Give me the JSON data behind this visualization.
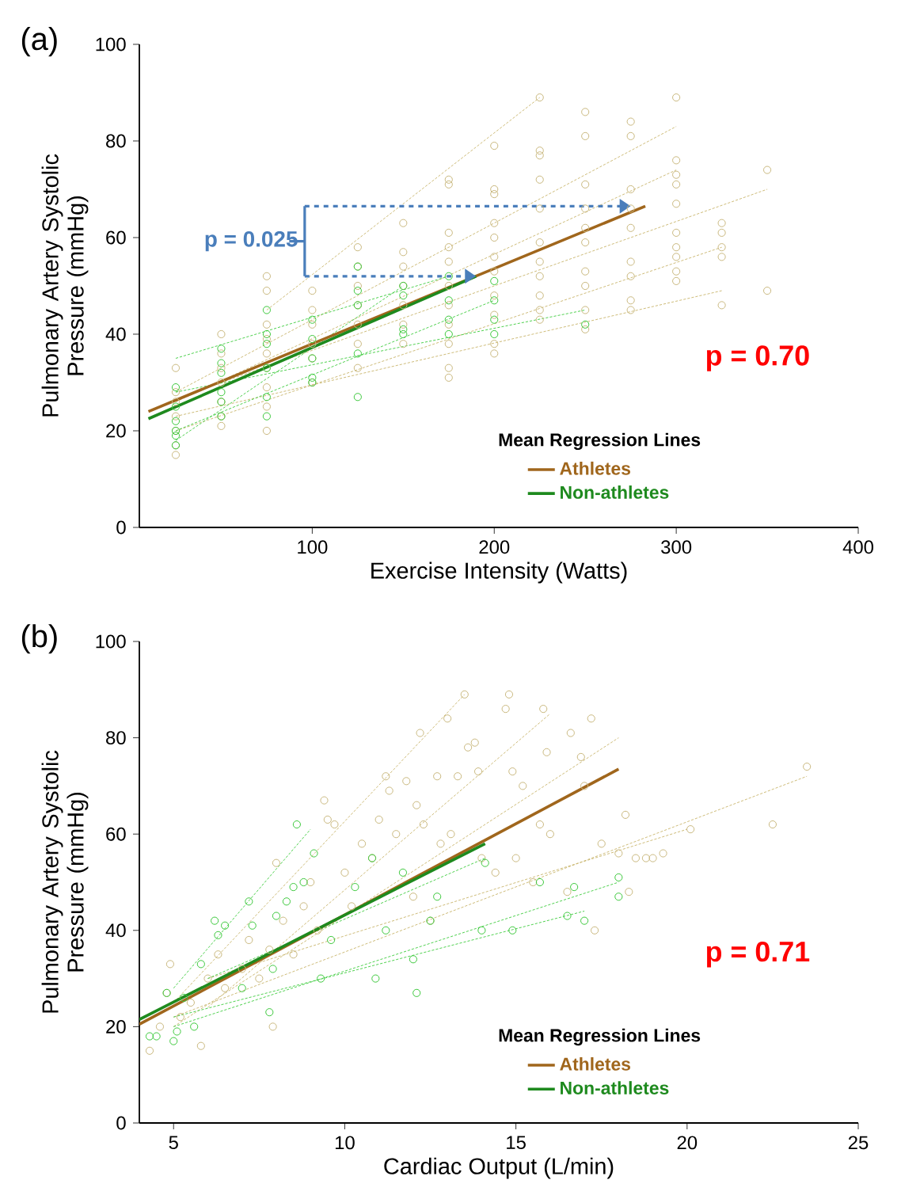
{
  "chart_data": [
    {
      "type": "scatter",
      "title": "(a)",
      "xlabel": "Exercise Intensity (Watts)",
      "ylabel": "Pulmonary Artery Systolic Pressure (mmHg)",
      "legend_title": "Mean Regression Lines",
      "legend": "bottom right",
      "xlim": [
        5,
        400
      ],
      "xticks": [
        100,
        200,
        300,
        400
      ],
      "ylim": [
        0,
        100
      ],
      "yticks": [
        0,
        20,
        40,
        60,
        80,
        100
      ],
      "annotations": [
        {
          "text": "p = 0.025",
          "x": 190,
          "y": 52
        },
        "p = 0.70"
      ],
      "series": [
        {
          "marker": "circle",
          "color": "#c9b87e",
          "x": [
            25,
            25,
            25,
            25,
            25,
            25,
            25,
            50,
            50,
            50,
            50,
            50,
            50,
            50,
            75,
            75,
            75,
            75,
            75,
            75,
            75,
            75,
            75,
            100,
            100,
            100,
            100,
            100,
            100,
            125,
            125,
            125,
            125,
            125,
            125,
            125,
            150,
            150,
            150,
            150,
            150,
            150,
            150,
            175,
            175,
            175,
            175,
            175,
            175,
            175,
            175,
            175,
            175,
            175,
            200,
            200,
            200,
            200,
            200,
            200,
            200,
            200,
            200,
            200,
            200,
            225,
            225,
            225,
            225,
            225,
            225,
            225,
            225,
            225,
            225,
            225,
            250,
            250,
            250,
            250,
            250,
            250,
            250,
            250,
            250,
            250,
            275,
            275,
            275,
            275,
            275,
            275,
            275,
            275,
            275,
            300,
            300,
            300,
            300,
            300,
            300,
            300,
            300,
            300,
            300,
            325,
            325,
            325,
            325,
            325,
            350,
            350
          ],
          "values": [
            15,
            17,
            20,
            23,
            26,
            28,
            33,
            21,
            23,
            26,
            30,
            33,
            36,
            40,
            20,
            25,
            29,
            33,
            36,
            39,
            42,
            49,
            52,
            30,
            35,
            38,
            42,
            45,
            49,
            33,
            38,
            42,
            46,
            50,
            54,
            58,
            38,
            42,
            46,
            50,
            54,
            57,
            63,
            31,
            33,
            38,
            42,
            46,
            50,
            55,
            58,
            61,
            71,
            72,
            36,
            38,
            44,
            48,
            53,
            56,
            60,
            63,
            69,
            70,
            79,
            43,
            45,
            48,
            52,
            55,
            59,
            66,
            72,
            77,
            78,
            89,
            41,
            45,
            50,
            53,
            59,
            62,
            66,
            71,
            81,
            86,
            45,
            47,
            52,
            55,
            62,
            66,
            70,
            81,
            84,
            51,
            53,
            56,
            58,
            61,
            67,
            71,
            73,
            76,
            89,
            46,
            56,
            58,
            61,
            63,
            49,
            74
          ]
        },
        {
          "marker": "circle",
          "color": "#3cc83c",
          "x": [
            25,
            25,
            25,
            25,
            25,
            25,
            50,
            50,
            50,
            50,
            50,
            50,
            75,
            75,
            75,
            75,
            75,
            75,
            100,
            100,
            100,
            100,
            100,
            125,
            125,
            125,
            125,
            125,
            150,
            150,
            150,
            150,
            175,
            175,
            175,
            175,
            200,
            200,
            200,
            200,
            250
          ],
          "values": [
            17,
            19,
            20,
            22,
            25,
            29,
            23,
            26,
            28,
            32,
            34,
            37,
            23,
            27,
            33,
            38,
            40,
            45,
            30,
            31,
            35,
            39,
            43,
            27,
            36,
            46,
            49,
            54,
            40,
            41,
            48,
            50,
            40,
            43,
            47,
            52,
            40,
            43,
            47,
            51,
            42
          ]
        },
        {
          "type": "line",
          "line_style": "dashed",
          "marker": "none",
          "color": "#c8b46a",
          "x": [
            25,
            300
          ],
          "values": [
            28,
            83
          ]
        },
        {
          "type": "line",
          "line_style": "dashed",
          "marker": "none",
          "color": "#c8b46a",
          "x": [
            25,
            325
          ],
          "values": [
            20,
            58
          ]
        },
        {
          "type": "line",
          "line_style": "dashed",
          "marker": "none",
          "color": "#c8b46a",
          "x": [
            50,
            350
          ],
          "values": [
            30,
            70
          ]
        },
        {
          "type": "line",
          "line_style": "dashed",
          "marker": "none",
          "color": "#c8b46a",
          "x": [
            25,
            325
          ],
          "values": [
            23,
            49
          ]
        },
        {
          "type": "line",
          "line_style": "dashed",
          "marker": "none",
          "color": "#c8b46a",
          "x": [
            75,
            225
          ],
          "values": [
            45,
            89
          ]
        },
        {
          "type": "line",
          "line_style": "dashed",
          "marker": "none",
          "color": "#c8b46a",
          "x": [
            25,
            300
          ],
          "values": [
            26,
            74
          ]
        },
        {
          "type": "line",
          "line_style": "dashed",
          "marker": "none",
          "color": "#3ccc3c",
          "x": [
            25,
            175
          ],
          "values": [
            35,
            52
          ]
        },
        {
          "type": "line",
          "line_style": "dashed",
          "marker": "none",
          "color": "#3ccc3c",
          "x": [
            25,
            200
          ],
          "values": [
            20,
            47
          ]
        },
        {
          "type": "line",
          "line_style": "dashed",
          "marker": "none",
          "color": "#3ccc3c",
          "x": [
            25,
            250
          ],
          "values": [
            28,
            45
          ]
        },
        {
          "type": "line",
          "line_style": "dashed",
          "marker": "none",
          "color": "#3ccc3c",
          "x": [
            25,
            150
          ],
          "values": [
            18,
            50
          ]
        },
        {
          "type": "line",
          "line_style": "solid",
          "marker": "none",
          "name": "Athletes",
          "color": "#a0661c",
          "x": [
            10,
            283
          ],
          "values": [
            24,
            66.5
          ]
        },
        {
          "type": "line",
          "line_style": "solid",
          "marker": "none",
          "name": "Non-athletes",
          "color": "#1e8a1e",
          "x": [
            10,
            190
          ],
          "values": [
            22.5,
            52
          ]
        }
      ]
    },
    {
      "type": "scatter",
      "title": "(b)",
      "xlabel": "Cardiac Output (L/min)",
      "ylabel": "Pulmonary Artery Systolic Pressure (mmHg)",
      "legend_title": "Mean Regression Lines",
      "legend": "bottom right",
      "xlim": [
        4,
        25
      ],
      "xticks": [
        5,
        10,
        15,
        20,
        25
      ],
      "ylim": [
        0,
        100
      ],
      "yticks": [
        0,
        20,
        40,
        60,
        80,
        100
      ],
      "annotations": [
        "p = 0.71"
      ],
      "series": [
        {
          "marker": "circle",
          "color": "#c9b87e",
          "x": [
            4.3,
            4.6,
            4.8,
            4.9,
            5.2,
            5.5,
            5.8,
            6,
            6.3,
            6.5,
            7,
            7.2,
            7.5,
            7.8,
            7.9,
            8,
            8.2,
            8.5,
            8.8,
            9,
            9.2,
            9.4,
            9.5,
            9.7,
            10,
            10.2,
            10.5,
            10.8,
            11,
            11.2,
            11.3,
            11.5,
            11.8,
            12,
            12.1,
            12.2,
            12.3,
            12.5,
            12.7,
            12.8,
            13,
            13.1,
            13.3,
            13.5,
            13.6,
            13.8,
            13.9,
            14,
            14.4,
            14.7,
            14.8,
            14.9,
            15,
            15.2,
            15.5,
            15.7,
            15.8,
            15.9,
            16,
            16.5,
            16.6,
            16.9,
            17,
            17.2,
            17.3,
            17.5,
            18,
            18.2,
            18.3,
            18.5,
            18.8,
            19,
            19.3,
            20.1,
            22.5,
            23.5
          ],
          "values": [
            15,
            20,
            27,
            33,
            22,
            25,
            16,
            30,
            35,
            28,
            32,
            38,
            30,
            36,
            20,
            54,
            42,
            35,
            45,
            50,
            40,
            67,
            63,
            62,
            52,
            45,
            58,
            55,
            63,
            72,
            69,
            60,
            71,
            47,
            66,
            81,
            62,
            42,
            72,
            58,
            84,
            60,
            72,
            89,
            78,
            79,
            73,
            55,
            52,
            86,
            89,
            73,
            55,
            70,
            50,
            62,
            86,
            77,
            60,
            48,
            81,
            76,
            70,
            84,
            40,
            58,
            56,
            64,
            48,
            55,
            55,
            55,
            56,
            61,
            62,
            74
          ]
        },
        {
          "marker": "circle",
          "color": "#3cc83c",
          "x": [
            4.3,
            4.5,
            4.8,
            5,
            5.1,
            5.3,
            5.6,
            5.8,
            6.2,
            6.3,
            6.5,
            7,
            7.2,
            7.3,
            7.8,
            7.9,
            8,
            8.3,
            8.5,
            8.6,
            8.8,
            9.1,
            9.3,
            9.6,
            10.3,
            10.8,
            10.9,
            11.2,
            11.7,
            12,
            12.1,
            12.5,
            12.7,
            14,
            14.1,
            14.9,
            15.7,
            16.5,
            16.7,
            17,
            18,
            18
          ],
          "values": [
            18,
            18,
            27,
            17,
            19,
            26,
            20,
            33,
            42,
            39,
            41,
            28,
            46,
            41,
            23,
            32,
            43,
            46,
            49,
            62,
            50,
            56,
            30,
            38,
            49,
            55,
            30,
            40,
            52,
            34,
            27,
            42,
            47,
            40,
            54,
            40,
            50,
            43,
            49,
            42,
            51,
            47
          ]
        },
        {
          "type": "line",
          "line_style": "dashed",
          "marker": "none",
          "color": "#c8b46a",
          "x": [
            5,
            13.5
          ],
          "values": [
            25,
            89
          ]
        },
        {
          "type": "line",
          "line_style": "dashed",
          "marker": "none",
          "color": "#c8b46a",
          "x": [
            5,
            23.5
          ],
          "values": [
            22,
            72
          ]
        },
        {
          "type": "line",
          "line_style": "dashed",
          "marker": "none",
          "color": "#c8b46a",
          "x": [
            5,
            18
          ],
          "values": [
            20,
            80
          ]
        },
        {
          "type": "line",
          "line_style": "dashed",
          "marker": "none",
          "color": "#c8b46a",
          "x": [
            6,
            20
          ],
          "values": [
            30,
            61
          ]
        },
        {
          "type": "line",
          "line_style": "dashed",
          "marker": "none",
          "color": "#c8b46a",
          "x": [
            6,
            16
          ],
          "values": [
            24,
            85
          ]
        },
        {
          "type": "line",
          "line_style": "dashed",
          "marker": "none",
          "color": "#3ccc3c",
          "x": [
            5,
            9
          ],
          "values": [
            28,
            61
          ]
        },
        {
          "type": "line",
          "line_style": "dashed",
          "marker": "none",
          "color": "#3ccc3c",
          "x": [
            5,
            18
          ],
          "values": [
            20,
            50
          ]
        },
        {
          "type": "line",
          "line_style": "dashed",
          "marker": "none",
          "color": "#3ccc3c",
          "x": [
            5,
            17
          ],
          "values": [
            22,
            44
          ]
        },
        {
          "type": "line",
          "line_style": "dashed",
          "marker": "none",
          "color": "#3ccc3c",
          "x": [
            6,
            14.1
          ],
          "values": [
            30,
            55
          ]
        },
        {
          "type": "line",
          "line_style": "solid",
          "marker": "none",
          "name": "Athletes",
          "color": "#a0661c",
          "x": [
            4,
            18
          ],
          "values": [
            20.5,
            73.5
          ]
        },
        {
          "type": "line",
          "line_style": "solid",
          "marker": "none",
          "name": "Non-athletes",
          "color": "#1e8a1e",
          "x": [
            4,
            14.1
          ],
          "values": [
            21.5,
            58
          ]
        }
      ]
    }
  ]
}
